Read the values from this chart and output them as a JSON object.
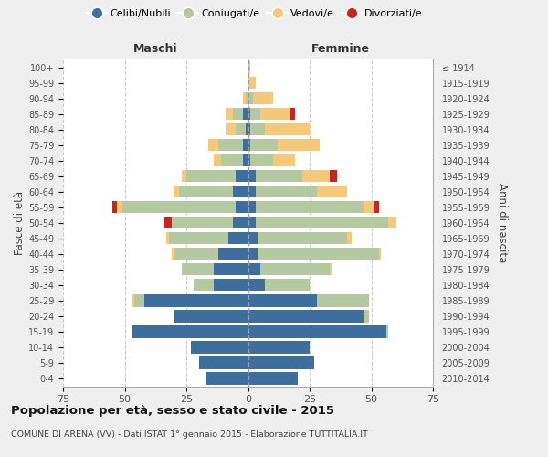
{
  "age_groups": [
    "0-4",
    "5-9",
    "10-14",
    "15-19",
    "20-24",
    "25-29",
    "30-34",
    "35-39",
    "40-44",
    "45-49",
    "50-54",
    "55-59",
    "60-64",
    "65-69",
    "70-74",
    "75-79",
    "80-84",
    "85-89",
    "90-94",
    "95-99",
    "100+"
  ],
  "birth_years": [
    "2010-2014",
    "2005-2009",
    "2000-2004",
    "1995-1999",
    "1990-1994",
    "1985-1989",
    "1980-1984",
    "1975-1979",
    "1970-1974",
    "1965-1969",
    "1960-1964",
    "1955-1959",
    "1950-1954",
    "1945-1949",
    "1940-1944",
    "1935-1939",
    "1930-1934",
    "1925-1929",
    "1920-1924",
    "1915-1919",
    "≤ 1914"
  ],
  "male_celibe": [
    17,
    20,
    23,
    47,
    30,
    42,
    14,
    14,
    12,
    8,
    6,
    5,
    6,
    5,
    2,
    2,
    1,
    2,
    0,
    0,
    0
  ],
  "male_coniugato": [
    0,
    0,
    0,
    0,
    0,
    4,
    8,
    13,
    18,
    24,
    25,
    46,
    22,
    20,
    9,
    10,
    4,
    4,
    1,
    0,
    0
  ],
  "male_vedovo": [
    0,
    0,
    0,
    0,
    0,
    1,
    0,
    0,
    1,
    1,
    0,
    2,
    2,
    2,
    3,
    4,
    4,
    3,
    1,
    0,
    0
  ],
  "male_divorziato": [
    0,
    0,
    0,
    0,
    0,
    0,
    0,
    0,
    0,
    0,
    3,
    2,
    0,
    0,
    0,
    0,
    0,
    0,
    0,
    0,
    0
  ],
  "female_nubile": [
    20,
    27,
    25,
    56,
    47,
    28,
    7,
    5,
    4,
    4,
    3,
    3,
    3,
    3,
    1,
    1,
    1,
    1,
    0,
    0,
    0
  ],
  "female_coniugata": [
    0,
    0,
    0,
    1,
    2,
    21,
    18,
    28,
    49,
    36,
    54,
    44,
    25,
    19,
    9,
    11,
    6,
    4,
    2,
    0,
    0
  ],
  "female_vedova": [
    0,
    0,
    0,
    0,
    0,
    0,
    0,
    1,
    1,
    2,
    3,
    4,
    12,
    11,
    9,
    17,
    18,
    12,
    8,
    3,
    1
  ],
  "female_divorziata": [
    0,
    0,
    0,
    0,
    0,
    0,
    0,
    0,
    0,
    0,
    0,
    2,
    0,
    3,
    0,
    0,
    0,
    2,
    0,
    0,
    0
  ],
  "colors": {
    "celibe": "#3d6e9e",
    "coniugato": "#b5c9a0",
    "vedovo": "#f5c87a",
    "divorziato": "#cc2222"
  },
  "xlim": 75,
  "title": "Popolazione per età, sesso e stato civile - 2015",
  "subtitle": "COMUNE DI ARENA (VV) - Dati ISTAT 1° gennaio 2015 - Elaborazione TUTTITALIA.IT",
  "legend_labels": [
    "Celibi/Nubili",
    "Coniugati/e",
    "Vedovi/e",
    "Divorziati/e"
  ],
  "maschi_label": "Maschi",
  "femmine_label": "Femmine",
  "y_label": "Fasce di età",
  "y_label_right": "Anni di nascita",
  "bg_color": "#efefef",
  "plot_bg_color": "#ffffff",
  "grid_color": "#cccccc"
}
